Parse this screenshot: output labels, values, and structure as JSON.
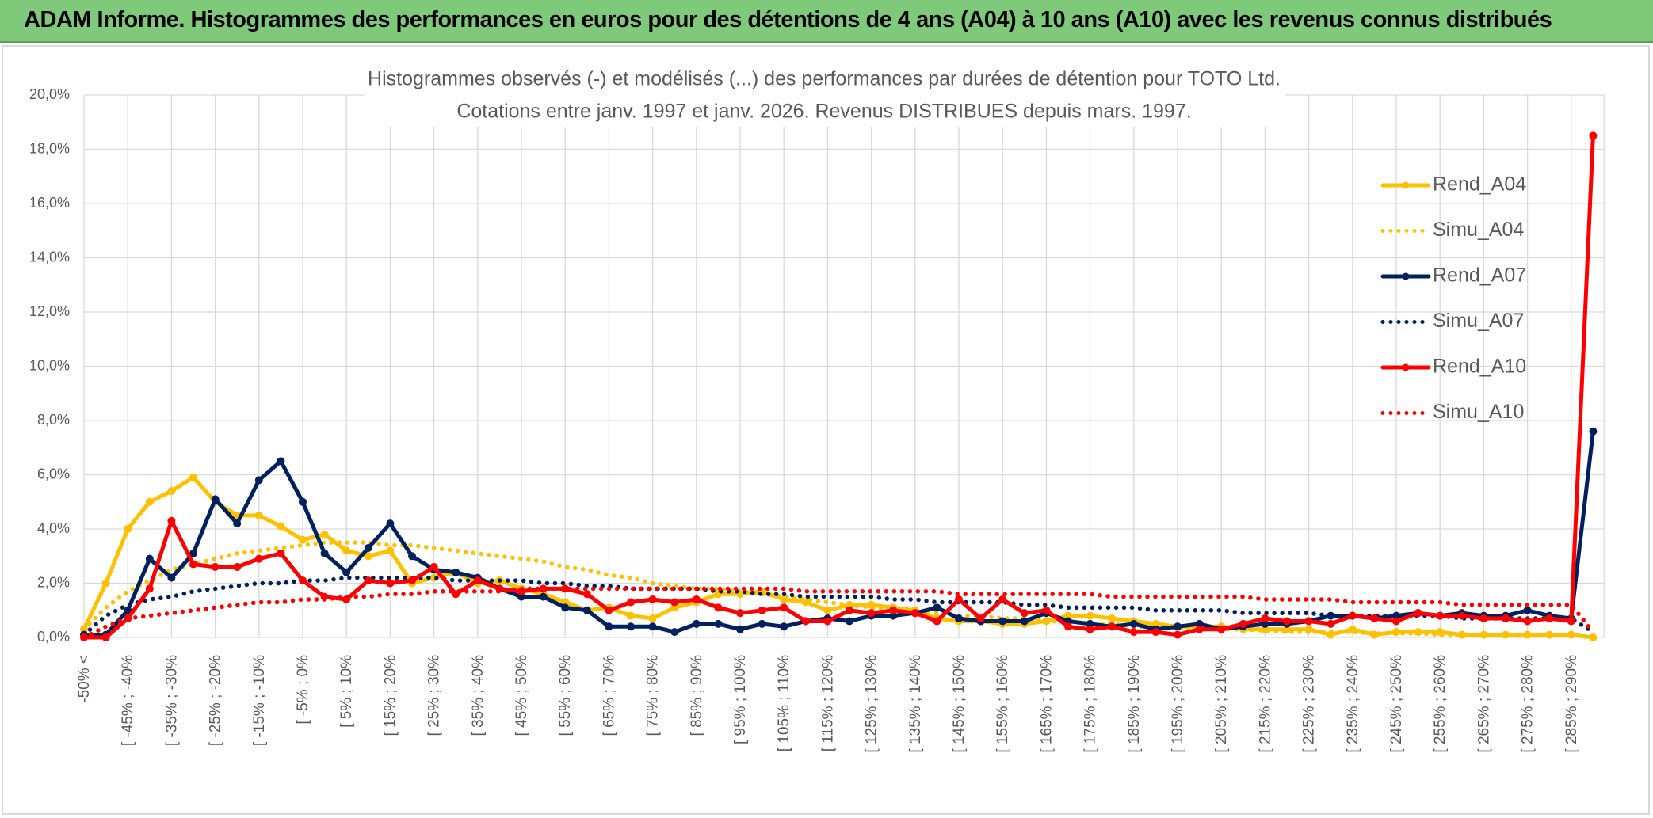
{
  "header": {
    "title": "ADAM Informe. Histogrammes des performances en euros pour des détentions de 4 ans (A04) à 10 ans (A10) avec les revenus connus distribués"
  },
  "chart_data": {
    "type": "line",
    "title": "Histogrammes observés (-) et modélisés (...) des performances par durées de détention pour TOTO Ltd.",
    "subtitle": "Cotations entre janv. 1997 et janv. 2026. Revenus DISTRIBUES depuis mars. 1997.",
    "categories": [
      "-50% <",
      null,
      "[ -45% ; -40%",
      null,
      "[ -35% ; -30%",
      null,
      "[ -25% ; -20%",
      null,
      "[ -15% ; -10%",
      null,
      "[ -5% ; 0%",
      null,
      "[ 5% ; 10%",
      null,
      "[ 15% ; 20%",
      null,
      "[ 25% ; 30%",
      null,
      "[ 35% ; 40%",
      null,
      "[ 45% ; 50%",
      null,
      "[ 55% ; 60%",
      null,
      "[ 65% ; 70%",
      null,
      "[ 75% ; 80%",
      null,
      "[ 85% ; 90%",
      null,
      "[ 95% ; 100%",
      null,
      "[ 105% ; 110%",
      null,
      "[ 115% ; 120%",
      null,
      "[ 125% ; 130%",
      null,
      "[ 135% ; 140%",
      null,
      "[ 145% ; 150%",
      null,
      "[ 155% ; 160%",
      null,
      "[ 165% ; 170%",
      null,
      "[ 175% ; 180%",
      null,
      "[ 185% ; 190%",
      null,
      "[ 195% ; 200%",
      null,
      "[ 205% ; 210%",
      null,
      "[ 215% ; 220%",
      null,
      "[ 225% ; 230%",
      null,
      "[ 235% ; 240%",
      null,
      "[ 245% ; 250%",
      null,
      "[ 255% ; 260%",
      null,
      "[ 265% ; 270%",
      null,
      "[ 275% ; 280%",
      null,
      "[ 285% ; 290%",
      null
    ],
    "ylim": [
      0,
      20
    ],
    "yticks": [
      {
        "value": 0,
        "label": "0,0%"
      },
      {
        "value": 2,
        "label": "2,0%"
      },
      {
        "value": 4,
        "label": "4,0%"
      },
      {
        "value": 6,
        "label": "6,0%"
      },
      {
        "value": 8,
        "label": "8,0%"
      },
      {
        "value": 10,
        "label": "10,0%"
      },
      {
        "value": 12,
        "label": "12,0%"
      },
      {
        "value": 14,
        "label": "14,0%"
      },
      {
        "value": 16,
        "label": "16,0%"
      },
      {
        "value": 18,
        "label": "18,0%"
      },
      {
        "value": 20,
        "label": "20,0%"
      }
    ],
    "grid": true,
    "legend": "right",
    "series": [
      {
        "name": "Rend_A04",
        "color": "#ffc000",
        "dotted": false,
        "markers": true,
        "values": [
          0.3,
          2.0,
          4.0,
          5.0,
          5.4,
          5.9,
          5.0,
          4.5,
          4.5,
          4.1,
          3.6,
          3.8,
          3.2,
          3.0,
          3.2,
          2.0,
          2.2,
          2.4,
          2.0,
          2.1,
          1.8,
          1.6,
          1.3,
          1.0,
          1.1,
          0.8,
          0.7,
          1.1,
          1.3,
          1.6,
          1.6,
          1.7,
          1.4,
          1.3,
          1.0,
          1.2,
          1.2,
          1.1,
          1.0,
          0.7,
          0.6,
          0.6,
          0.5,
          0.5,
          0.6,
          0.8,
          0.8,
          0.7,
          0.6,
          0.5,
          0.4,
          0.4,
          0.4,
          0.3,
          0.3,
          0.3,
          0.3,
          0.1,
          0.3,
          0.1,
          0.2,
          0.2,
          0.2,
          0.1,
          0.1,
          0.1,
          0.1,
          0.1,
          0.1,
          0.0
        ]
      },
      {
        "name": "Simu_A04",
        "color": "#ffc000",
        "dotted": true,
        "markers": false,
        "values": [
          0.3,
          1.1,
          1.7,
          2.1,
          2.5,
          2.7,
          2.9,
          3.1,
          3.2,
          3.3,
          3.4,
          3.5,
          3.5,
          3.5,
          3.4,
          3.4,
          3.3,
          3.2,
          3.1,
          3.0,
          2.9,
          2.8,
          2.6,
          2.5,
          2.3,
          2.2,
          2.0,
          1.9,
          1.8,
          1.8,
          1.7,
          1.6,
          1.5,
          1.4,
          1.3,
          1.2,
          1.1,
          1.0,
          0.9,
          0.9,
          0.8,
          0.8,
          0.7,
          0.7,
          0.6,
          0.6,
          0.5,
          0.5,
          0.4,
          0.4,
          0.35,
          0.3,
          0.3,
          0.3,
          0.25,
          0.2,
          0.2,
          0.2,
          0.2,
          0.15,
          0.15,
          0.15,
          0.1,
          0.1,
          0.1,
          0.1,
          0.1,
          0.1,
          0.1,
          0.0
        ]
      },
      {
        "name": "Rend_A07",
        "color": "#002060",
        "dotted": false,
        "markers": true,
        "values": [
          0.1,
          0.1,
          1.0,
          2.9,
          2.2,
          3.1,
          5.1,
          4.2,
          5.8,
          6.5,
          5.0,
          3.1,
          2.4,
          3.3,
          4.2,
          3.0,
          2.5,
          2.4,
          2.2,
          1.8,
          1.5,
          1.5,
          1.1,
          1.0,
          0.4,
          0.4,
          0.4,
          0.2,
          0.5,
          0.5,
          0.3,
          0.5,
          0.4,
          0.6,
          0.7,
          0.6,
          0.8,
          0.8,
          0.9,
          1.1,
          0.7,
          0.6,
          0.6,
          0.6,
          0.9,
          0.6,
          0.5,
          0.4,
          0.5,
          0.3,
          0.4,
          0.5,
          0.3,
          0.4,
          0.5,
          0.5,
          0.6,
          0.8,
          0.8,
          0.7,
          0.8,
          0.9,
          0.8,
          0.9,
          0.8,
          0.8,
          1.0,
          0.8,
          0.7,
          7.6
        ]
      },
      {
        "name": "Simu_A07",
        "color": "#002060",
        "dotted": true,
        "markers": false,
        "values": [
          0.1,
          0.8,
          1.2,
          1.4,
          1.5,
          1.7,
          1.8,
          1.9,
          2.0,
          2.0,
          2.1,
          2.1,
          2.2,
          2.2,
          2.2,
          2.2,
          2.2,
          2.1,
          2.1,
          2.1,
          2.1,
          2.0,
          2.0,
          1.9,
          1.9,
          1.8,
          1.8,
          1.8,
          1.8,
          1.7,
          1.7,
          1.6,
          1.6,
          1.5,
          1.5,
          1.5,
          1.5,
          1.4,
          1.4,
          1.3,
          1.3,
          1.3,
          1.3,
          1.2,
          1.2,
          1.1,
          1.1,
          1.1,
          1.1,
          1.0,
          1.0,
          1.0,
          1.0,
          0.9,
          0.9,
          0.9,
          0.9,
          0.8,
          0.8,
          0.8,
          0.8,
          0.8,
          0.8,
          0.7,
          0.7,
          0.7,
          0.7,
          0.7,
          0.7,
          0.2
        ]
      },
      {
        "name": "Rend_A10",
        "color": "#ff0000",
        "dotted": false,
        "markers": true,
        "values": [
          0.0,
          0.0,
          0.7,
          1.8,
          4.3,
          2.7,
          2.6,
          2.6,
          2.9,
          3.1,
          2.1,
          1.5,
          1.4,
          2.1,
          2.0,
          2.1,
          2.6,
          1.6,
          2.1,
          1.8,
          1.7,
          1.8,
          1.8,
          1.6,
          1.0,
          1.3,
          1.4,
          1.3,
          1.4,
          1.1,
          0.9,
          1.0,
          1.1,
          0.6,
          0.6,
          1.0,
          0.9,
          1.0,
          0.9,
          0.6,
          1.4,
          0.7,
          1.4,
          0.9,
          1.0,
          0.4,
          0.3,
          0.4,
          0.2,
          0.2,
          0.1,
          0.3,
          0.3,
          0.5,
          0.7,
          0.6,
          0.6,
          0.5,
          0.8,
          0.7,
          0.6,
          0.9,
          0.8,
          0.8,
          0.7,
          0.7,
          0.6,
          0.7,
          0.6,
          18.5
        ]
      },
      {
        "name": "Simu_A10",
        "color": "#ff0000",
        "dotted": true,
        "markers": false,
        "values": [
          0.0,
          0.4,
          0.7,
          0.8,
          0.9,
          1.0,
          1.1,
          1.2,
          1.3,
          1.3,
          1.4,
          1.4,
          1.5,
          1.5,
          1.6,
          1.6,
          1.7,
          1.7,
          1.7,
          1.7,
          1.8,
          1.8,
          1.8,
          1.8,
          1.8,
          1.8,
          1.8,
          1.8,
          1.8,
          1.8,
          1.8,
          1.8,
          1.8,
          1.7,
          1.7,
          1.7,
          1.7,
          1.7,
          1.7,
          1.7,
          1.6,
          1.6,
          1.6,
          1.6,
          1.6,
          1.6,
          1.6,
          1.5,
          1.5,
          1.5,
          1.5,
          1.5,
          1.5,
          1.5,
          1.4,
          1.4,
          1.4,
          1.4,
          1.3,
          1.3,
          1.3,
          1.3,
          1.3,
          1.2,
          1.2,
          1.2,
          1.2,
          1.2,
          1.2,
          0.2
        ]
      }
    ]
  }
}
